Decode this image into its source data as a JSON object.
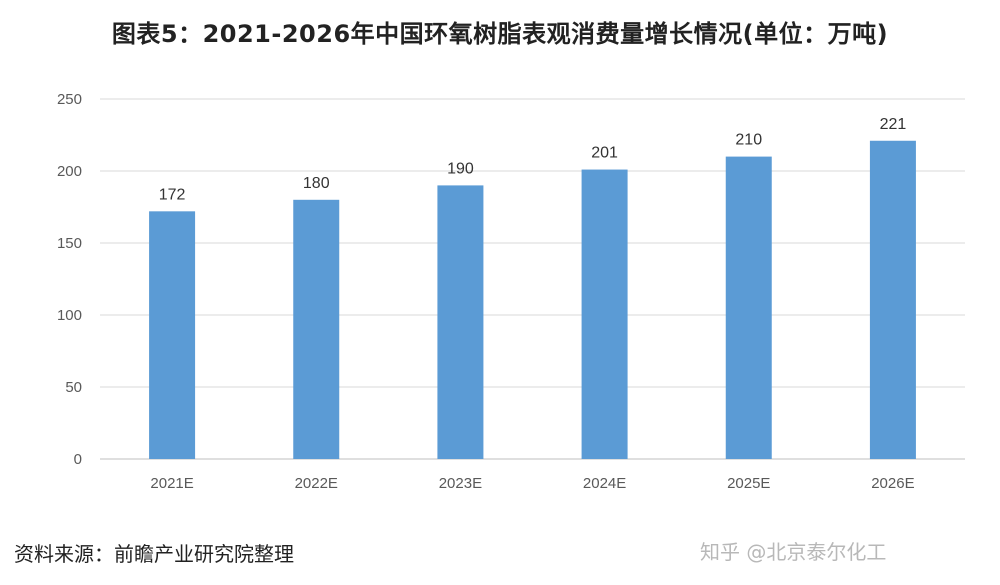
{
  "chart_data": {
    "type": "bar",
    "title": "图表5：2021-2026年中国环氧树脂表观消费量增长情况(单位：万吨)",
    "categories": [
      "2021E",
      "2022E",
      "2023E",
      "2024E",
      "2025E",
      "2026E"
    ],
    "values": [
      172,
      180,
      190,
      201,
      210,
      221
    ],
    "ylim": [
      0,
      250
    ],
    "yticks": [
      0,
      50,
      100,
      150,
      200,
      250
    ],
    "grid": true,
    "bar_color": "#5b9bd5",
    "data_labels": true
  },
  "footer": {
    "source": "资料来源：前瞻产业研究院整理",
    "watermark": "知乎 @北京泰尔化工"
  }
}
